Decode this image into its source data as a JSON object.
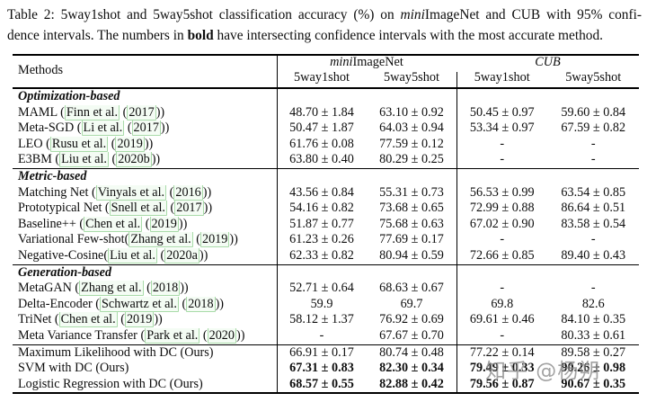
{
  "caption": {
    "lines": [
      [
        {
          "t": "Table 2: 5way1shot and 5way5shot classification accuracy (%) on "
        },
        {
          "t": "mini",
          "i": 1
        },
        {
          "t": "ImageNet and CUB with 95% confi-"
        }
      ],
      [
        {
          "t": "dence intervals. The numbers in "
        },
        {
          "t": "bold",
          "b": 1
        },
        {
          "t": " have intersecting confidence intervals with the most accurate method."
        }
      ]
    ]
  },
  "table": {
    "header": {
      "methods": "Methods",
      "group1_prefix": "mini",
      "group1_rest": "ImageNet",
      "group2": "CUB",
      "cols": [
        "5way1shot",
        "5way5shot",
        "5way1shot",
        "5way5shot"
      ]
    },
    "sections": [
      {
        "title": "Optimization-based",
        "rows": [
          {
            "label_parts": [
              {
                "t": "MAML ("
              },
              {
                "t": "Finn et al.",
                "link": 1
              },
              {
                "t": " ("
              },
              {
                "t": "2017",
                "link": 1
              },
              {
                "t": "))"
              }
            ],
            "vals": [
              "48.70 ± 1.84",
              "63.10 ± 0.92",
              "50.45 ± 0.97",
              "59.60 ± 0.84"
            ],
            "bold": 0
          },
          {
            "label_parts": [
              {
                "t": "Meta-SGD ("
              },
              {
                "t": "Li et al.",
                "link": 1
              },
              {
                "t": " ("
              },
              {
                "t": "2017",
                "link": 1
              },
              {
                "t": "))"
              }
            ],
            "vals": [
              "50.47 ± 1.87",
              "64.03 ± 0.94",
              "53.34 ± 0.97",
              "67.59 ± 0.82"
            ],
            "bold": 0
          },
          {
            "label_parts": [
              {
                "t": "LEO ("
              },
              {
                "t": "Rusu et al.",
                "link": 1
              },
              {
                "t": " ("
              },
              {
                "t": "2019",
                "link": 1
              },
              {
                "t": "))"
              }
            ],
            "vals": [
              "61.76 ± 0.08",
              "77.59 ± 0.12",
              "-",
              "-"
            ],
            "bold": 0
          },
          {
            "label_parts": [
              {
                "t": "E3BM ("
              },
              {
                "t": "Liu et al.",
                "link": 1
              },
              {
                "t": " ("
              },
              {
                "t": "2020b",
                "link": 1
              },
              {
                "t": "))"
              }
            ],
            "vals": [
              "63.80 ± 0.40",
              "80.29 ± 0.25",
              "-",
              "-"
            ],
            "bold": 0
          }
        ]
      },
      {
        "title": "Metric-based",
        "rows": [
          {
            "label_parts": [
              {
                "t": "Matching Net ("
              },
              {
                "t": "Vinyals et al.",
                "link": 1
              },
              {
                "t": " ("
              },
              {
                "t": "2016",
                "link": 1
              },
              {
                "t": "))"
              }
            ],
            "vals": [
              "43.56 ± 0.84",
              "55.31 ± 0.73",
              "56.53 ± 0.99",
              "63.54 ± 0.85"
            ],
            "bold": 0
          },
          {
            "label_parts": [
              {
                "t": "Prototypical Net ("
              },
              {
                "t": "Snell et al.",
                "link": 1
              },
              {
                "t": " ("
              },
              {
                "t": "2017",
                "link": 1
              },
              {
                "t": "))"
              }
            ],
            "vals": [
              "54.16 ± 0.82",
              "73.68 ± 0.65",
              "72.99 ± 0.88",
              "86.64 ± 0.51"
            ],
            "bold": 0
          },
          {
            "label_parts": [
              {
                "t": "Baseline++ ("
              },
              {
                "t": "Chen et al.",
                "link": 1
              },
              {
                "t": " ("
              },
              {
                "t": "2019",
                "link": 1
              },
              {
                "t": "))"
              }
            ],
            "vals": [
              "51.87 ± 0.77",
              "75.68 ± 0.63",
              "67.02 ± 0.90",
              "83.58 ± 0.54"
            ],
            "bold": 0
          },
          {
            "label_parts": [
              {
                "t": "Variational Few-shot("
              },
              {
                "t": "Zhang et al.",
                "link": 1
              },
              {
                "t": " ("
              },
              {
                "t": "2019",
                "link": 1
              },
              {
                "t": "))"
              }
            ],
            "vals": [
              "61.23 ± 0.26",
              "77.69 ± 0.17",
              "-",
              "-"
            ],
            "bold": 0
          },
          {
            "label_parts": [
              {
                "t": "Negative-Cosine("
              },
              {
                "t": "Liu et al.",
                "link": 1
              },
              {
                "t": " ("
              },
              {
                "t": "2020a",
                "link": 1
              },
              {
                "t": "))"
              }
            ],
            "vals": [
              "62.33 ± 0.82",
              "80.94 ± 0.59",
              "72.66 ± 0.85",
              "89.40 ± 0.43"
            ],
            "bold": 0
          }
        ]
      },
      {
        "title": "Generation-based",
        "rows": [
          {
            "label_parts": [
              {
                "t": "MetaGAN ("
              },
              {
                "t": "Zhang et al.",
                "link": 1
              },
              {
                "t": " ("
              },
              {
                "t": "2018",
                "link": 1
              },
              {
                "t": "))"
              }
            ],
            "vals": [
              "52.71 ± 0.64",
              "68.63 ± 0.67",
              "-",
              "-"
            ],
            "bold": 0
          },
          {
            "label_parts": [
              {
                "t": "Delta-Encoder ("
              },
              {
                "t": "Schwartz et al.",
                "link": 1
              },
              {
                "t": " ("
              },
              {
                "t": "2018",
                "link": 1
              },
              {
                "t": "))"
              }
            ],
            "vals": [
              "59.9",
              "69.7",
              "69.8",
              "82.6"
            ],
            "bold": 0
          },
          {
            "label_parts": [
              {
                "t": "TriNet ("
              },
              {
                "t": "Chen et al.",
                "link": 1
              },
              {
                "t": " ("
              },
              {
                "t": "2019",
                "link": 1
              },
              {
                "t": "))"
              }
            ],
            "vals": [
              "58.12 ± 1.37",
              "76.92 ± 0.69",
              "69.61 ± 0.46",
              "84.10 ± 0.35"
            ],
            "bold": 0
          },
          {
            "label_parts": [
              {
                "t": "Meta Variance Transfer ("
              },
              {
                "t": "Park et al.",
                "link": 1
              },
              {
                "t": " ("
              },
              {
                "t": "2020",
                "link": 1
              },
              {
                "t": "))"
              }
            ],
            "vals": [
              "-",
              "67.67 ± 0.70",
              "-",
              "80.33 ± 0.61"
            ],
            "bold": 0
          }
        ]
      },
      {
        "title": null,
        "rows": [
          {
            "label_parts": [
              {
                "t": "Maximum Likelihood with DC (Ours)"
              }
            ],
            "vals": [
              "66.91 ± 0.17",
              "80.74 ± 0.48",
              "77.22 ± 0.14",
              "89.58 ± 0.27"
            ],
            "bold": 0
          },
          {
            "label_parts": [
              {
                "t": "SVM with DC (Ours)"
              }
            ],
            "vals": [
              "67.31 ± 0.83",
              "82.30 ± 0.34",
              "79.49 ± 0.33",
              "90.26 ± 0.98"
            ],
            "bold": 1
          },
          {
            "label_parts": [
              {
                "t": "Logistic Regression with DC (Ours)"
              }
            ],
            "vals": [
              "68.57 ± 0.55",
              "82.88 ± 0.42",
              "79.56 ± 0.87",
              "90.67 ± 0.35"
            ],
            "bold": 1
          }
        ]
      }
    ]
  },
  "watermark": {
    "text": "知乎 @杨朔"
  },
  "colors": {
    "rule": "#000000",
    "citebox_border": "#a9dba9",
    "watermark": "#8c8c8c",
    "background": "#ffffff"
  }
}
